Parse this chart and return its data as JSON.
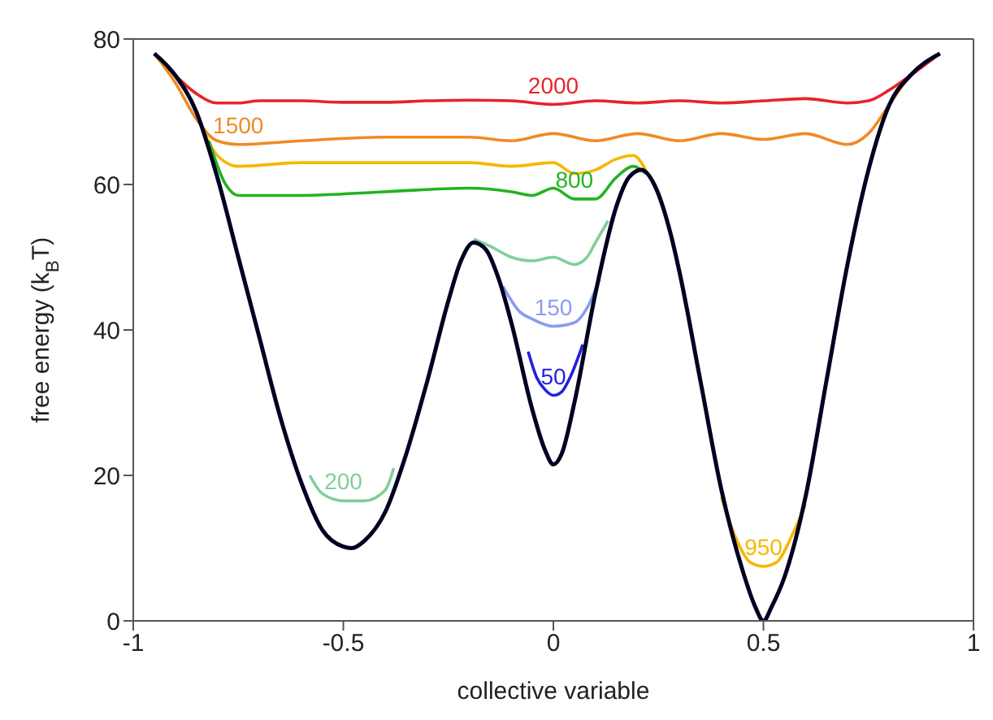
{
  "chart_data": {
    "type": "line",
    "xlabel": "collective variable",
    "ylabel": "free energy (k$_{B}$T)",
    "xlim": [
      -1,
      1
    ],
    "xticks": [
      -1,
      -0.5,
      0,
      0.5,
      1
    ],
    "ylim": [
      0,
      80
    ],
    "yticks": [
      0,
      20,
      40,
      60,
      80
    ],
    "grid": false,
    "legend": false,
    "marker": "none",
    "line_style": "solid",
    "series": [
      {
        "name": "2000",
        "color": "#e8232a",
        "x": [
          -0.95,
          -0.9,
          -0.85,
          -0.8,
          -0.75,
          -0.7,
          -0.6,
          -0.5,
          -0.4,
          -0.3,
          -0.2,
          -0.1,
          0,
          0.1,
          0.2,
          0.3,
          0.4,
          0.5,
          0.6,
          0.7,
          0.75,
          0.8,
          0.85,
          0.92
        ],
        "values": [
          78,
          75,
          72.5,
          71.2,
          71.2,
          71.5,
          71.5,
          71.3,
          71.3,
          71.5,
          71.6,
          71.5,
          71,
          71.5,
          71.2,
          71.5,
          71.2,
          71.5,
          71.8,
          71.2,
          71.5,
          73,
          75,
          78
        ]
      },
      {
        "name": "1500",
        "color": "#f08a24",
        "x": [
          -0.95,
          -0.9,
          -0.85,
          -0.8,
          -0.75,
          -0.6,
          -0.4,
          -0.2,
          -0.1,
          0,
          0.1,
          0.2,
          0.3,
          0.4,
          0.5,
          0.6,
          0.7,
          0.75,
          0.8,
          0.85,
          0.92
        ],
        "values": [
          78,
          74,
          69,
          66,
          65.5,
          66,
          66.5,
          66.5,
          66,
          67,
          66,
          67,
          66,
          67,
          66.2,
          67,
          65.5,
          67,
          71,
          75,
          78
        ]
      },
      {
        "name": "950",
        "color": "#f5b800",
        "x": [
          -0.85,
          -0.8,
          -0.75,
          -0.6,
          -0.4,
          -0.2,
          -0.1,
          0,
          0.05,
          0.1,
          0.15,
          0.19,
          0.22,
          0.3,
          0.4,
          0.43,
          0.47,
          0.5,
          0.53,
          0.57,
          0.6
        ],
        "values": [
          70,
          64,
          62.5,
          63,
          63,
          63,
          62.5,
          63,
          61.5,
          62,
          63.5,
          64,
          62,
          null,
          17,
          12,
          8,
          7.5,
          8,
          12,
          16
        ]
      },
      {
        "name": "800",
        "color": "#22b322",
        "x": [
          -0.82,
          -0.78,
          -0.75,
          -0.6,
          -0.4,
          -0.2,
          -0.1,
          -0.05,
          0,
          0.05,
          0.1,
          0.15,
          0.19,
          0.22
        ],
        "values": [
          66,
          60,
          58.5,
          58.5,
          59,
          59.5,
          59,
          58.5,
          59.5,
          58,
          58,
          61,
          62.5,
          61.5
        ]
      },
      {
        "name": "200",
        "color": "#7fcf9a",
        "x": [
          -0.58,
          -0.55,
          -0.5,
          -0.45,
          -0.4,
          -0.38,
          -0.3,
          -0.19,
          -0.15,
          -0.1,
          -0.05,
          0,
          0.05,
          0.08,
          0.1,
          0.13
        ],
        "values": [
          20,
          17.5,
          16.5,
          16.5,
          18,
          21,
          null,
          52.5,
          51.5,
          50,
          49.5,
          50,
          49,
          50,
          52,
          55
        ]
      },
      {
        "name": "150",
        "color": "#8a9cf0",
        "x": [
          -0.12,
          -0.08,
          -0.05,
          0,
          0.05,
          0.08,
          0.11
        ],
        "values": [
          46,
          42.5,
          41.5,
          40.5,
          41,
          43,
          47
        ]
      },
      {
        "name": "50",
        "color": "#2020e0",
        "x": [
          -0.06,
          -0.04,
          -0.02,
          0,
          0.02,
          0.04,
          0.07
        ],
        "values": [
          37,
          33.5,
          31.8,
          31,
          31.5,
          33.5,
          38
        ]
      },
      {
        "color": "#000022",
        "x": [
          -0.95,
          -0.9,
          -0.85,
          -0.8,
          -0.75,
          -0.7,
          -0.65,
          -0.6,
          -0.55,
          -0.5,
          -0.48,
          -0.45,
          -0.4,
          -0.35,
          -0.3,
          -0.25,
          -0.22,
          -0.19,
          -0.16,
          -0.13,
          -0.1,
          -0.05,
          -0.02,
          0,
          0.02,
          0.05,
          0.1,
          0.15,
          0.18,
          0.21,
          0.24,
          0.28,
          0.3,
          0.35,
          0.4,
          0.45,
          0.48,
          0.5,
          0.52,
          0.55,
          0.6,
          0.65,
          0.7,
          0.75,
          0.8,
          0.85,
          0.92
        ],
        "values": [
          78,
          75,
          70,
          61,
          50,
          39,
          28,
          19,
          12.5,
          10.2,
          10,
          11,
          15,
          23,
          33,
          44,
          49.5,
          52,
          51,
          47,
          41,
          29,
          23.5,
          21.5,
          23,
          30,
          45,
          57,
          61,
          62,
          60,
          53,
          48,
          33,
          18,
          7,
          2,
          0,
          2,
          6,
          17,
          33,
          49,
          62,
          71,
          75,
          78
        ]
      }
    ]
  }
}
